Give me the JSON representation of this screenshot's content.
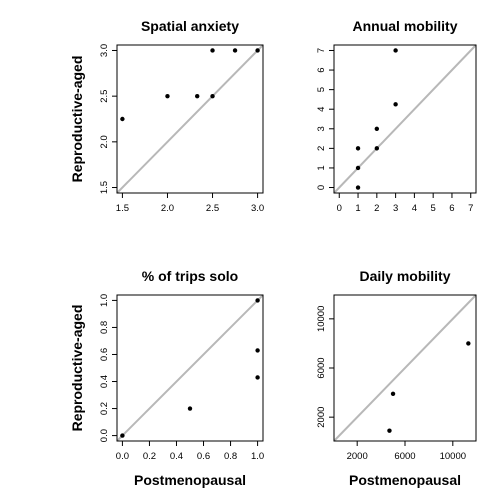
{
  "chart_data": [
    {
      "type": "scatter",
      "title": "Spatial anxiety",
      "xlabel": "",
      "ylabel": "Reproductive-aged",
      "xlim": [
        1.5,
        3.0
      ],
      "ylim": [
        1.5,
        3.0
      ],
      "xticks": [
        "1.5",
        "2.0",
        "2.5",
        "3.0"
      ],
      "yticks": [
        "1.5",
        "2.0",
        "2.5",
        "3.0"
      ],
      "reference_line": "y = x",
      "points": [
        {
          "x": 1.5,
          "y": 2.25
        },
        {
          "x": 2.0,
          "y": 2.5
        },
        {
          "x": 2.33,
          "y": 2.5
        },
        {
          "x": 2.5,
          "y": 2.5
        },
        {
          "x": 2.5,
          "y": 3.0
        },
        {
          "x": 2.75,
          "y": 3.0
        },
        {
          "x": 3.0,
          "y": 3.0
        }
      ]
    },
    {
      "type": "scatter",
      "title": "Annual mobility",
      "xlabel": "",
      "ylabel": "",
      "xlim": [
        0,
        7
      ],
      "ylim": [
        0,
        7
      ],
      "xticks": [
        "0",
        "1",
        "2",
        "3",
        "4",
        "5",
        "6",
        "7"
      ],
      "yticks": [
        "0",
        "1",
        "2",
        "3",
        "4",
        "5",
        "6",
        "7"
      ],
      "reference_line": "y = x",
      "points": [
        {
          "x": 1,
          "y": 0
        },
        {
          "x": 1,
          "y": 1
        },
        {
          "x": 1,
          "y": 2
        },
        {
          "x": 2,
          "y": 2
        },
        {
          "x": 2,
          "y": 3
        },
        {
          "x": 3,
          "y": 4.25
        },
        {
          "x": 3,
          "y": 7
        }
      ]
    },
    {
      "type": "scatter",
      "title": "% of trips solo",
      "xlabel": "Postmenopausal",
      "ylabel": "Reproductive-aged",
      "xlim": [
        0,
        1
      ],
      "ylim": [
        0,
        1
      ],
      "xticks": [
        "0.0",
        "0.2",
        "0.4",
        "0.6",
        "0.8",
        "1.0"
      ],
      "yticks": [
        "0.0",
        "0.2",
        "0.4",
        "0.6",
        "0.8",
        "1.0"
      ],
      "reference_line": "y = x",
      "points": [
        {
          "x": 0.0,
          "y": 0.0
        },
        {
          "x": 0.5,
          "y": 0.2
        },
        {
          "x": 1.0,
          "y": 0.43
        },
        {
          "x": 1.0,
          "y": 0.63
        },
        {
          "x": 1.0,
          "y": 1.0
        }
      ]
    },
    {
      "type": "scatter",
      "title": "Daily mobility",
      "xlabel": "Postmenopausal",
      "ylabel": "",
      "xlim": [
        500,
        11500
      ],
      "ylim": [
        500,
        11500
      ],
      "xticks": [
        "2000",
        "6000",
        "10000"
      ],
      "xtick_values": [
        2000,
        6000,
        10000
      ],
      "yticks": [
        "2000",
        "6000",
        "10000"
      ],
      "ytick_values": [
        2000,
        6000,
        10000
      ],
      "reference_line": "y = x",
      "points": [
        {
          "x": 4700,
          "y": 900
        },
        {
          "x": 5000,
          "y": 3900
        },
        {
          "x": 11300,
          "y": 8000
        }
      ]
    }
  ]
}
